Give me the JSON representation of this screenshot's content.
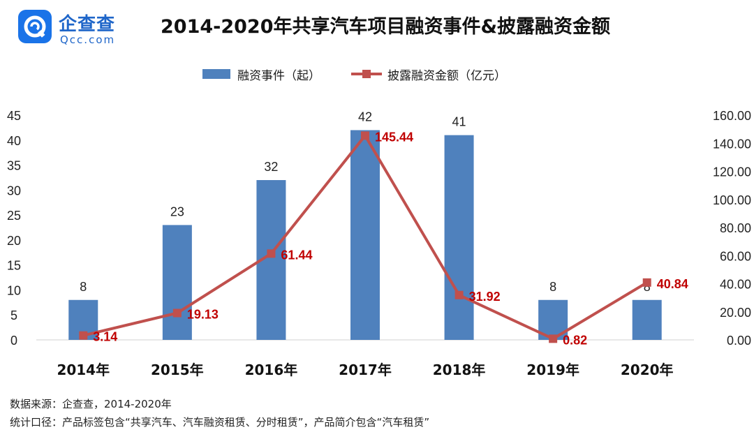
{
  "logo": {
    "name_cn": "企查查",
    "name_en": "Qcc.com",
    "mark": "qcc-q-logo"
  },
  "title": "2014-2020年共享汽车项目融资事件&披露融资金额",
  "colors": {
    "bar": "#4f81bd",
    "line": "#c0504d",
    "line_label": "#c00000",
    "brand": "#1f66c9"
  },
  "chart_data": {
    "type": "bar",
    "categories": [
      "2014年",
      "2015年",
      "2016年",
      "2017年",
      "2018年",
      "2019年",
      "2020年"
    ],
    "series": [
      {
        "name": "融资事件（起）",
        "type": "bar",
        "axis": "left",
        "values": [
          8,
          23,
          32,
          42,
          41,
          8,
          8
        ]
      },
      {
        "name": "披露融资金额（亿元）",
        "type": "line",
        "axis": "right",
        "values": [
          3.14,
          19.13,
          61.44,
          145.44,
          31.92,
          0.82,
          40.84
        ]
      }
    ],
    "data_labels": {
      "bars": [
        "8",
        "23",
        "32",
        "42",
        "41",
        "8",
        "8"
      ],
      "line": [
        "3.14",
        "19.13",
        "61.44",
        "145.44",
        "31.92",
        "0.82",
        "40.84"
      ]
    },
    "y_left": {
      "range": [
        0,
        45
      ],
      "ticks": [
        "0",
        "5",
        "10",
        "15",
        "20",
        "25",
        "30",
        "35",
        "40",
        "45"
      ]
    },
    "y_right": {
      "range": [
        0,
        160
      ],
      "ticks": [
        "0.00",
        "20.00",
        "40.00",
        "60.00",
        "80.00",
        "100.00",
        "120.00",
        "140.00",
        "160.00"
      ]
    },
    "legend_position": "top-center",
    "grid": false
  },
  "footer": {
    "source": "数据来源：企查查，2014-2020年",
    "scope": "统计口径：产品标签包含“共享汽车、汽车融资租赁、分时租赁”，产品简介包含“汽车租赁”"
  }
}
